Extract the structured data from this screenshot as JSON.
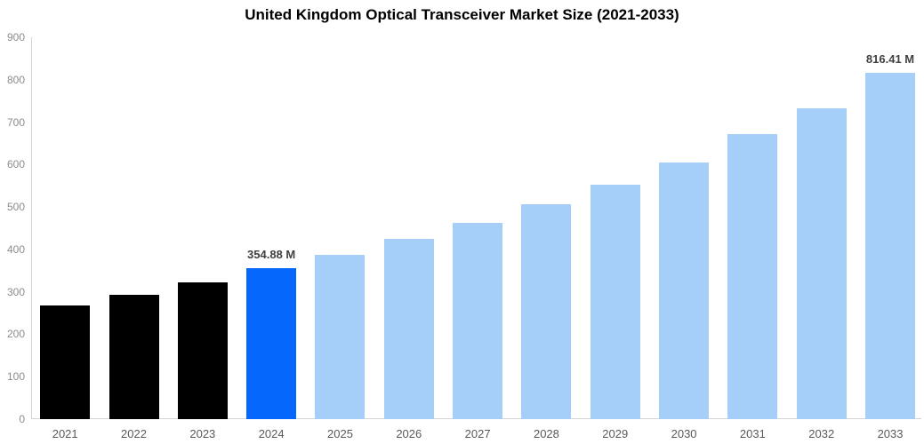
{
  "chart_data": {
    "type": "bar",
    "title": "United Kingdom Optical Transceiver Market Size (2021-2033)",
    "xlabel": "",
    "ylabel": "",
    "unit": "M",
    "categories": [
      "2021",
      "2022",
      "2023",
      "2024",
      "2025",
      "2026",
      "2027",
      "2028",
      "2029",
      "2030",
      "2031",
      "2032",
      "2033"
    ],
    "values": [
      268,
      294,
      322,
      354.88,
      387,
      424,
      463,
      506,
      553,
      605,
      672,
      733,
      816.41
    ],
    "value_labels": [
      "",
      "",
      "",
      "354.88 M",
      "",
      "",
      "",
      "",
      "",
      "",
      "",
      "",
      "816.41 M"
    ],
    "bar_colors": [
      "#000000",
      "#000000",
      "#000000",
      "#0667FC",
      "#A5CEF8",
      "#A5CEF8",
      "#A5CEF8",
      "#A5CEF8",
      "#A5CEF8",
      "#A5CEF8",
      "#A5CEF8",
      "#A5CEF8",
      "#A5CEF8"
    ],
    "ylim": [
      0,
      900
    ],
    "yticks": [
      0,
      100,
      200,
      300,
      400,
      500,
      600,
      700,
      800,
      900
    ],
    "grid": false,
    "legend_position": "none",
    "colors": {
      "title_text": "#000000",
      "axis_line": "#d4d4d4",
      "y_tick_text": "#8c8c8c",
      "x_tick_text": "#595959",
      "value_label_text": "#404040",
      "background": "#ffffff",
      "historical_bar": "#000000",
      "highlight_bar": "#0667FC",
      "forecast_bar": "#A5CEF8"
    }
  }
}
